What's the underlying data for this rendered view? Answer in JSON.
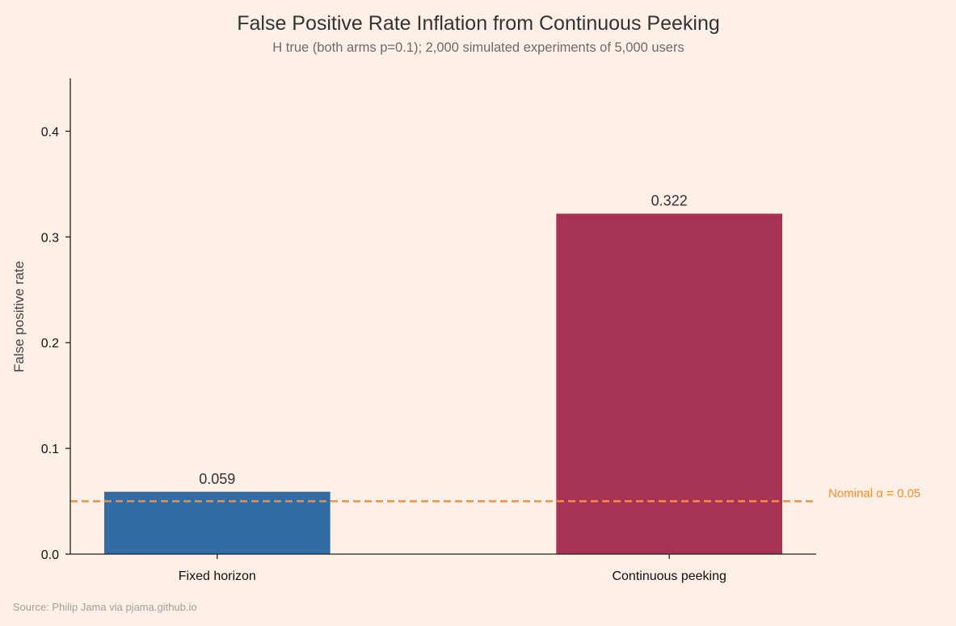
{
  "chart_data": {
    "type": "bar",
    "title": "False Positive Rate Inflation from Continuous Peeking",
    "subtitle": "H  true (both arms p=0.1); 2,000 simulated experiments of 5,000 users",
    "xlabel": "",
    "ylabel": "False positive rate",
    "categories": [
      "Fixed horizon",
      "Continuous peeking"
    ],
    "values": [
      0.059,
      0.322
    ],
    "data_labels": [
      "0.059",
      "0.322"
    ],
    "colors": [
      "#336ca4",
      "#a63254"
    ],
    "ylim": [
      0,
      0.45
    ],
    "yticks": [
      0.0,
      0.1,
      0.2,
      0.3,
      0.4
    ],
    "ytick_labels": [
      "0.0",
      "0.1",
      "0.2",
      "0.3",
      "0.4"
    ],
    "grid": false,
    "reference_line": {
      "value": 0.05,
      "label": "Nominal α = 0.05",
      "color": "#ff8c2a",
      "style": "dashed"
    },
    "source": "Source: Philip Jama via pjama.github.io"
  }
}
